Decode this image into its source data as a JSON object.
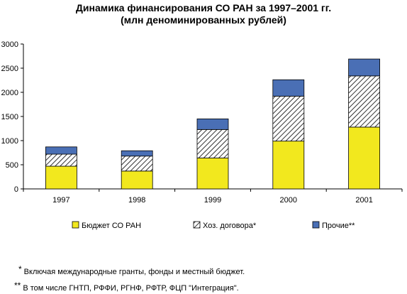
{
  "chart_data": {
    "type": "bar",
    "stacked": true,
    "title": "Динамика финансирования  СО РАН  за 1997–2001 гг.",
    "subtitle": "(млн деноминированных рублей)",
    "categories": [
      "1997",
      "1998",
      "1999",
      "2000",
      "2001"
    ],
    "series": [
      {
        "name": "Бюджет СО РАН",
        "values": [
          470,
          370,
          640,
          990,
          1280
        ],
        "color": "#f2e81e",
        "pattern": "solid"
      },
      {
        "name": "Хоз. договора*",
        "values": [
          250,
          310,
          590,
          930,
          1060
        ],
        "color": "#ffffff",
        "pattern": "diagonal-hatch"
      },
      {
        "name": "Прочие**",
        "values": [
          150,
          110,
          220,
          340,
          350
        ],
        "color": "#4a6fb5",
        "pattern": "solid"
      }
    ],
    "ylim": [
      0,
      3000
    ],
    "yticks": [
      "0",
      "500",
      "1000",
      "1500",
      "2000",
      "2500",
      "3000"
    ],
    "xlabel": "",
    "ylabel": "",
    "grid": false,
    "legend": "bottom"
  },
  "footnotes": [
    {
      "mark": "*",
      "text": "Включая международные гранты, фонды и местный бюджет."
    },
    {
      "mark": "**",
      "text": "В том числе ГНТП, РФФИ, РГНФ, РФТР, ФЦП \"Интеграция\"."
    }
  ]
}
